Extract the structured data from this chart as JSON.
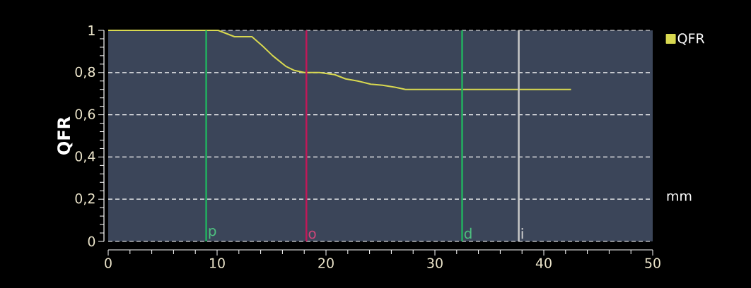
{
  "chart_data": {
    "type": "line",
    "ylabel": "QFR",
    "x": [
      0,
      10.1,
      11.6,
      13.2,
      14.2,
      15.1,
      16.3,
      17.1,
      18.0,
      19.4,
      20.8,
      21.8,
      22.9,
      24.1,
      25.2,
      26.4,
      27.3,
      42.5
    ],
    "series": [
      {
        "name": "QFR",
        "color": "#d8d850",
        "values": [
          1,
          1,
          0.97,
          0.97,
          0.925,
          0.88,
          0.83,
          0.81,
          0.8,
          0.8,
          0.79,
          0.77,
          0.76,
          0.745,
          0.74,
          0.73,
          0.72,
          0.72
        ]
      }
    ],
    "xlim": [
      0,
      50
    ],
    "xticks": [
      0,
      10,
      20,
      30,
      40,
      50
    ],
    "ylim": [
      0,
      1
    ],
    "yticks": [
      0,
      {
        "value": 0.2,
        "label": "0,2"
      },
      {
        "value": 0.4,
        "label": "0,4"
      },
      {
        "value": 0.6,
        "label": "0,6"
      },
      {
        "value": 0.8,
        "label": "0,8"
      },
      1
    ],
    "grid": "y",
    "legend": "top right",
    "marker": "none",
    "line_style": "solid",
    "ref_lines": [
      {
        "axis": "x",
        "value": 9.0,
        "label": "p",
        "color": "#22b060"
      },
      {
        "axis": "x",
        "value": 18.2,
        "label": "o",
        "color": "#c01858"
      },
      {
        "axis": "x",
        "value": 32.5,
        "label": "d",
        "color": "#22b060"
      },
      {
        "axis": "x",
        "value": 37.7,
        "label": "i",
        "color": "#c8c8c8"
      }
    ],
    "annotations": [
      "mm"
    ]
  }
}
